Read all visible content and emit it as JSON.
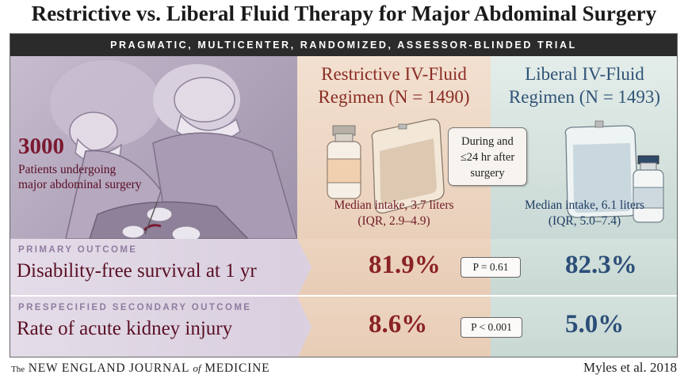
{
  "title": "Restrictive vs. Liberal Fluid Therapy for Major Abdominal Surgery",
  "banner": "PRAGMATIC, MULTICENTER, RANDOMIZED, ASSESSOR-BLINDED TRIAL",
  "population": {
    "count": "3000",
    "description": "Patients undergoing major abdominal surgery"
  },
  "arms": {
    "restrictive": {
      "title_line1": "Restrictive IV-Fluid",
      "title_line2": "Regimen (N = 1490)",
      "intake_line1": "Median intake, 3.7 liters",
      "intake_line2": "(IQR, 2.9–4.9)",
      "color": "#8a2d24"
    },
    "liberal": {
      "title_line1": "Liberal IV-Fluid",
      "title_line2": "Regimen (N = 1493)",
      "intake_line1": "Median intake, 6.1 liters",
      "intake_line2": "(IQR, 5.0–7.4)",
      "color": "#2f5377"
    }
  },
  "timing": {
    "line1": "During and",
    "line2": "≤24 hr after",
    "line3": "surgery"
  },
  "outcomes": [
    {
      "kicker": "PRIMARY OUTCOME",
      "label": "Disability-free survival at 1 yr",
      "restrictive": "81.9%",
      "liberal": "82.3%",
      "p_value": "P = 0.61"
    },
    {
      "kicker": "PRESPECIFIED SECONDARY OUTCOME",
      "label": "Rate of acute kidney injury",
      "restrictive": "8.6%",
      "liberal": "5.0%",
      "p_value": "P < 0.001"
    }
  ],
  "footer": {
    "journal_the": "The",
    "journal_name_1": "NEW ENGLAND JOURNAL",
    "journal_of": "of",
    "journal_name_2": "MEDICINE",
    "citation": "Myles et al. 2018"
  },
  "icons": [
    "surgery-illustration",
    "vial-icon",
    "iv-bag-icon"
  ]
}
